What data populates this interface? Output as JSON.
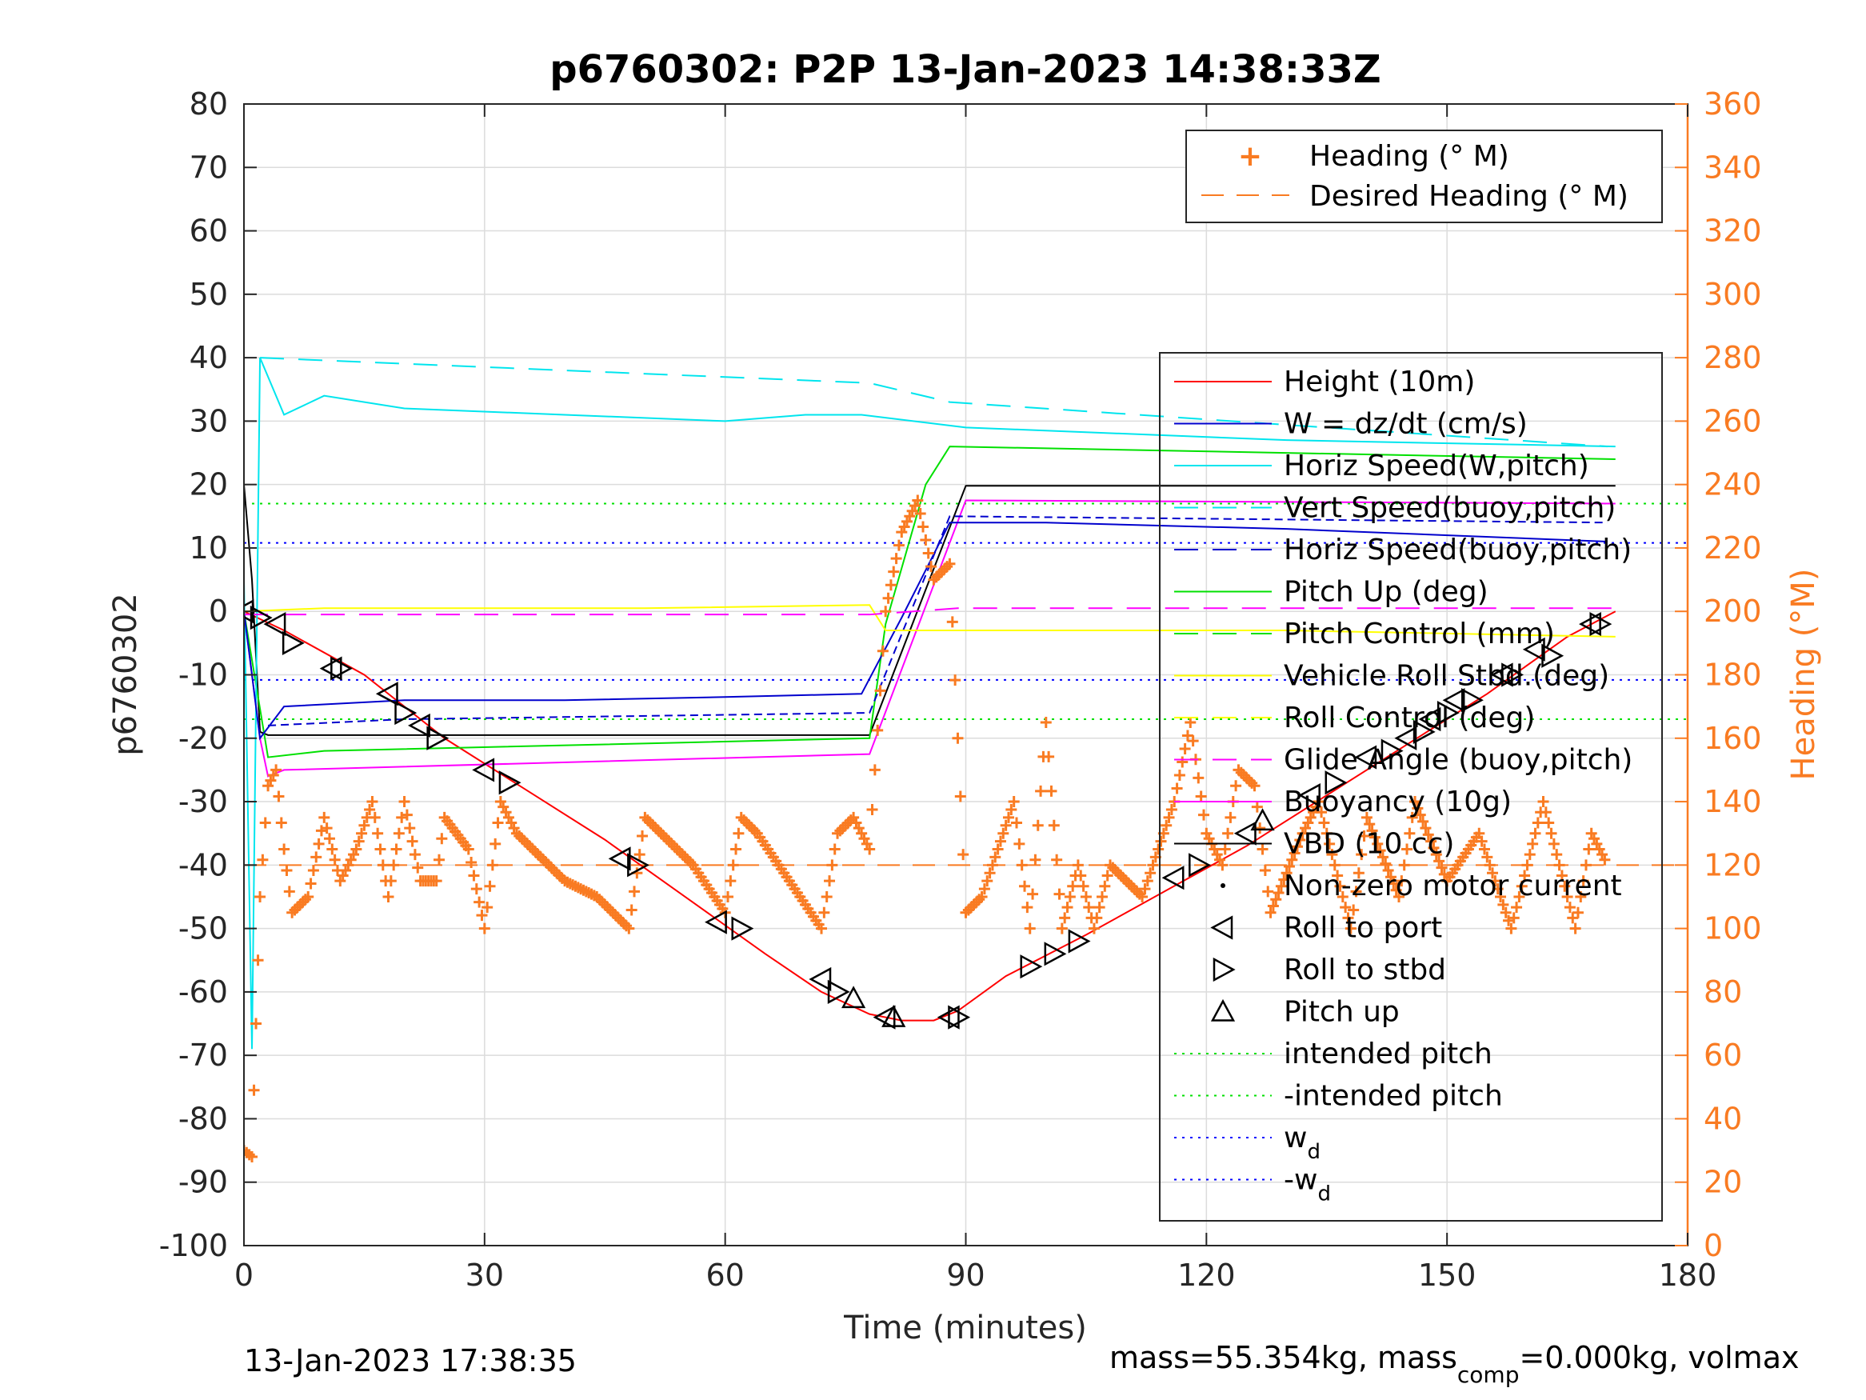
{
  "chart_data": {
    "type": "line",
    "title": "p6760302: P2P 13-Jan-2023 14:38:33Z",
    "xlabel": "Time (minutes)",
    "ylabel_left": "p6760302",
    "ylabel_right": "Heading (°M)",
    "xlim": [
      0,
      180
    ],
    "ylim_left": [
      -100,
      80
    ],
    "ylim_right": [
      0,
      360
    ],
    "xticks": [
      "0",
      "30",
      "60",
      "90",
      "120",
      "150",
      "180"
    ],
    "yticks_left": [
      "-100",
      "-90",
      "-80",
      "-70",
      "-60",
      "-50",
      "-40",
      "-30",
      "-20",
      "-10",
      "0",
      "10",
      "20",
      "30",
      "40",
      "50",
      "60",
      "70",
      "80"
    ],
    "yticks_right": [
      "0",
      "20",
      "40",
      "60",
      "80",
      "100",
      "120",
      "140",
      "160",
      "180",
      "200",
      "220",
      "240",
      "260",
      "280",
      "300",
      "320",
      "340",
      "360"
    ],
    "grid": true,
    "colors": {
      "height": "#ff0000",
      "w": "#0000cd",
      "horiz_speed_w": "#00e5ee",
      "vert_speed_buoy": "#00e5ee",
      "pitch": "#00e000",
      "pitch_control": "#00e000",
      "roll": "#ffff00",
      "glide": "#ff00ff",
      "buoyancy": "#ff00ff",
      "vbd": "#000000",
      "heading": "#f97b22",
      "wd": "#0000ff"
    },
    "legend_heading": {
      "placement": "top-right",
      "items": [
        "Heading (° M)",
        "Desired Heading (° M)"
      ]
    },
    "legend_main": {
      "placement": "right",
      "items": [
        "Height (10m)",
        "W = dz/dt (cm/s)",
        "Horiz Speed(W,pitch)",
        "Vert Speed(buoy,pitch)",
        "Horiz Speed(buoy,pitch)",
        "Pitch Up (deg)",
        "Pitch Control (mm)",
        "Vehicle Roll Stbd.(deg)",
        "Roll Control (deg)",
        "Glide Angle (buoy,pitch)",
        "Buoyancy (10g)",
        "VBD (10 cc)",
        "Non-zero motor current",
        "Roll to port",
        "Roll to stbd",
        "Pitch up",
        "intended pitch",
        "-intended pitch",
        "w",
        "-w"
      ],
      "subscript": "d"
    },
    "reference_lines": {
      "intended_pitch": 17,
      "neg_intended_pitch": -17,
      "w_d": 10.8,
      "neg_w_d": -10.8,
      "desired_heading": 120
    },
    "series": [
      {
        "name": "Height (10m)",
        "x": [
          0,
          5,
          15,
          25,
          35,
          45,
          55,
          65,
          72,
          78,
          82,
          86,
          89,
          95,
          105,
          115,
          125,
          135,
          145,
          155,
          165,
          171
        ],
        "y": [
          0,
          -3,
          -10,
          -20,
          -28,
          -36,
          -45,
          -54,
          -60,
          -63.5,
          -64.5,
          -64.5,
          -63,
          -57.5,
          -51,
          -44,
          -37,
          -29,
          -21,
          -13,
          -4,
          0
        ]
      },
      {
        "name": "VBD (10 cc)",
        "x": [
          0,
          1,
          2,
          3,
          78,
          90,
          171
        ],
        "y": [
          20,
          5,
          -19,
          -19.5,
          -19.5,
          19.8,
          19.8
        ]
      },
      {
        "name": "Buoyancy (10g)",
        "x": [
          0,
          2,
          3,
          5,
          78,
          90,
          171
        ],
        "y": [
          0,
          -20,
          -26,
          -25,
          -22.5,
          17.5,
          17
        ]
      },
      {
        "name": "Pitch Up (deg)",
        "x": [
          0,
          3,
          10,
          78,
          80,
          85,
          88,
          171
        ],
        "y": [
          0,
          -23,
          -22,
          -20,
          -2,
          20,
          26,
          24
        ]
      },
      {
        "name": "Horiz Speed(W,pitch)",
        "x": [
          0,
          1,
          2,
          5,
          10,
          20,
          40,
          60,
          70,
          77,
          90,
          130,
          171
        ],
        "y": [
          5,
          -69,
          40,
          31,
          34,
          32,
          31,
          30,
          31,
          31,
          29,
          27,
          26
        ]
      },
      {
        "name": "Vert Speed(buoy,pitch)",
        "x": [
          2,
          78,
          88,
          170
        ],
        "y": [
          40,
          36,
          33,
          26
        ]
      },
      {
        "name": "W = dz/dt (cm/s)",
        "x": [
          0,
          2,
          5,
          20,
          40,
          60,
          77,
          82,
          88,
          100,
          130,
          170
        ],
        "y": [
          0,
          -20,
          -15,
          -14,
          -14,
          -13.5,
          -13,
          -1,
          14,
          14,
          13,
          11
        ]
      },
      {
        "name": "Horiz Speed(buoy,pitch)",
        "x": [
          3,
          20,
          78,
          88,
          170
        ],
        "y": [
          -18,
          -17,
          -16,
          15,
          14
        ]
      },
      {
        "name": "Vehicle Roll Stbd.(deg)",
        "x": [
          0,
          10,
          30,
          50,
          78,
          80,
          90,
          130,
          171
        ],
        "y": [
          0,
          0.5,
          0.5,
          0.5,
          1,
          -3,
          -3,
          -3,
          -4
        ]
      },
      {
        "name": "Glide Angle (buoy,pitch)",
        "x": [
          0,
          78,
          89,
          171
        ],
        "y": [
          -0.5,
          -0.5,
          0.5,
          0.5
        ]
      },
      {
        "name": "Heading (° M)",
        "axis": "right",
        "x": [
          0,
          1,
          1.5,
          2,
          3,
          4,
          5,
          6,
          8,
          10,
          12,
          14,
          16,
          18,
          20,
          22,
          24,
          25,
          28,
          30,
          32,
          34,
          36,
          40,
          44,
          48,
          50,
          52,
          56,
          60,
          62,
          64,
          68,
          72,
          74,
          76,
          78,
          80,
          82,
          84,
          86,
          88,
          90,
          92,
          96,
          98,
          100,
          102,
          104,
          106,
          108,
          112,
          116,
          118,
          120,
          122,
          124,
          126,
          128,
          132,
          134,
          138,
          140,
          144,
          146,
          150,
          154,
          158,
          162,
          166,
          168,
          170
        ],
        "y": [
          30,
          28,
          70,
          110,
          145,
          150,
          125,
          105,
          110,
          135,
          115,
          125,
          140,
          110,
          140,
          115,
          115,
          135,
          125,
          100,
          140,
          130,
          125,
          115,
          110,
          100,
          135,
          130,
          120,
          105,
          135,
          130,
          115,
          100,
          130,
          135,
          125,
          200,
          225,
          235,
          210,
          215,
          105,
          110,
          140,
          100,
          165,
          100,
          120,
          100,
          120,
          110,
          140,
          165,
          130,
          120,
          150,
          145,
          105,
          130,
          140,
          100,
          135,
          110,
          140,
          115,
          130,
          100,
          140,
          100,
          130,
          120
        ]
      }
    ],
    "markers": {
      "roll_to_port": {
        "x": [
          0,
          4,
          11,
          18,
          22,
          30,
          47,
          59,
          72,
          80,
          88,
          116,
          125,
          133,
          140,
          145,
          148,
          151,
          157,
          161,
          168
        ],
        "y": [
          0,
          -2,
          -9,
          -13,
          -18,
          -25,
          -39,
          -49,
          -58,
          -64,
          -64,
          -42,
          -35,
          -29,
          -23,
          -20,
          -17,
          -14,
          -10,
          -6,
          -2
        ]
      },
      "roll_to_stbd": {
        "x": [
          2,
          6,
          12,
          20,
          24,
          33,
          49,
          62,
          74,
          89,
          98,
          101,
          104,
          119,
          136,
          143,
          147,
          150,
          153,
          158,
          163,
          169
        ],
        "y": [
          -1,
          -5,
          -9,
          -16,
          -20,
          -27,
          -40,
          -50,
          -60,
          -64,
          -56,
          -54,
          -52,
          -40,
          -27,
          -22,
          -19,
          -16,
          -14,
          -10,
          -7,
          -2
        ]
      },
      "pitch_up": {
        "x": [
          76,
          81,
          127
        ],
        "y": [
          -61,
          -64,
          -33
        ]
      }
    }
  },
  "footer": {
    "timestamp": "13-Jan-2023 17:38:35",
    "mass_text": "mass=55.354kg, mass",
    "mass_sub": "comp",
    "mass_rest": "=0.000kg, volmax"
  }
}
